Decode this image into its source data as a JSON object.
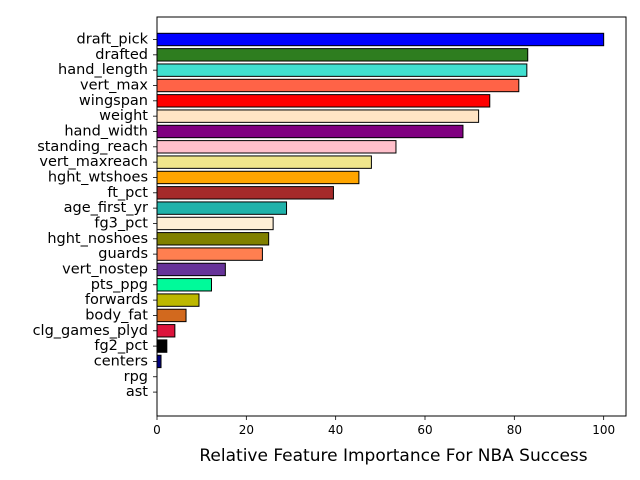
{
  "chart_data": {
    "type": "bar",
    "orientation": "horizontal",
    "xlabel": "Relative Feature Importance For NBA Success",
    "ylabel": "",
    "xlim": [
      0,
      105
    ],
    "xticks": [
      0,
      20,
      40,
      60,
      80,
      100
    ],
    "grid": false,
    "categories": [
      "draft_pick",
      "drafted",
      "hand_length",
      "vert_max",
      "wingspan",
      "weight",
      "hand_width",
      "standing_reach",
      "vert_maxreach",
      "hght_wtshoes",
      "ft_pct",
      "age_first_yr",
      "fg3_pct",
      "hght_noshoes",
      "guards",
      "vert_nostep",
      "pts_ppg",
      "forwards",
      "body_fat",
      "clg_games_plyd",
      "fg2_pct",
      "centers",
      "rpg",
      "ast"
    ],
    "values": [
      100,
      83,
      82.8,
      81,
      74.5,
      72,
      68.5,
      53.5,
      48,
      45.2,
      39.5,
      29,
      26,
      25,
      23.6,
      15.3,
      12.2,
      9.4,
      6.5,
      4,
      2.2,
      0.9,
      0,
      0
    ],
    "colors": [
      "#0000ff",
      "#2e7d1f",
      "#40e0d0",
      "#ff6347",
      "#ff0000",
      "#ffe4c4",
      "#800080",
      "#ffc0cb",
      "#f0e68c",
      "#ffa500",
      "#a52a2a",
      "#20b2aa",
      "#ffefd5",
      "#808000",
      "#ff7f50",
      "#663399",
      "#00fa9a",
      "#bdb800",
      "#d2691e",
      "#dc143c",
      "#000000",
      "#000080",
      "#8b4513",
      "#ffffff"
    ]
  }
}
